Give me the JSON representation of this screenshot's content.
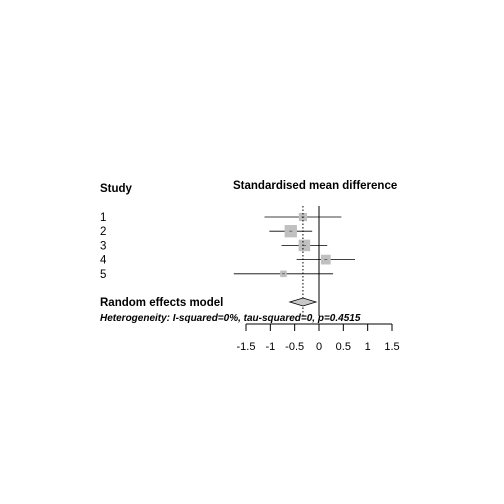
{
  "chart_data": {
    "type": "forest",
    "study_header": "Study",
    "effect_header": "Standardised mean difference",
    "studies": [
      {
        "label": "1",
        "smd": -0.33,
        "lower": -1.12,
        "upper": 0.46,
        "weight": 0.7
      },
      {
        "label": "2",
        "smd": -0.58,
        "lower": -1.02,
        "upper": -0.14,
        "weight": 1.6
      },
      {
        "label": "3",
        "smd": -0.3,
        "lower": -0.77,
        "upper": 0.17,
        "weight": 1.4
      },
      {
        "label": "4",
        "smd": 0.14,
        "lower": -0.46,
        "upper": 0.74,
        "weight": 1.0
      },
      {
        "label": "5",
        "smd": -0.73,
        "lower": -1.75,
        "upper": 0.29,
        "weight": 0.45
      }
    ],
    "pooled": {
      "label": "Random effects model",
      "smd": -0.33,
      "lower": -0.6,
      "upper": -0.06
    },
    "heterogeneity": "Heterogeneity: I-squared=0%, tau-squared=0, p=0.4515",
    "xlim": [
      -1.5,
      1.5
    ],
    "ticks": [
      -1.5,
      -1,
      -0.5,
      0,
      0.5,
      1,
      1.5
    ],
    "tick_labels": [
      "-1.5",
      "-1",
      "-0.5",
      "0",
      "0.5",
      "1",
      "1.5"
    ]
  }
}
